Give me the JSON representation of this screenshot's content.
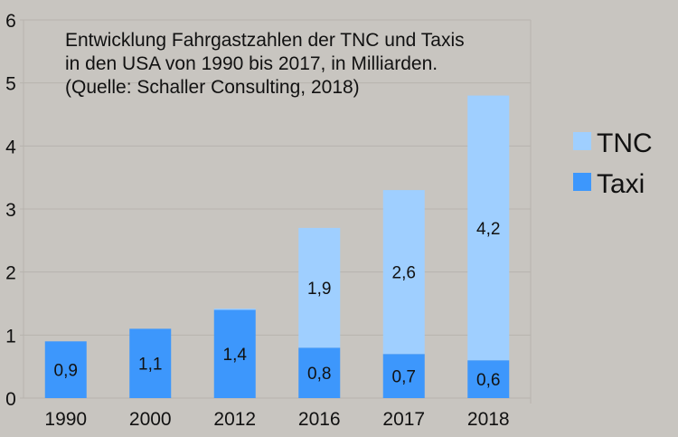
{
  "chart_data": {
    "type": "bar",
    "stacked": true,
    "title_lines": [
      "Entwicklung Fahrgastzahlen der TNC und Taxis",
      "in den USA von 1990 bis 2017, in Milliarden.",
      "(Quelle: Schaller Consulting, 2018)"
    ],
    "xlabel": "",
    "ylabel": "",
    "categories": [
      "1990",
      "2000",
      "2012",
      "2016",
      "2017",
      "2018"
    ],
    "series": [
      {
        "name": "Taxi",
        "color": "#3d97fc",
        "values": [
          0.9,
          1.1,
          1.4,
          0.8,
          0.7,
          0.6
        ],
        "labels": [
          "0,9",
          "1,1",
          "1,4",
          "0,8",
          "0,7",
          "0,6"
        ]
      },
      {
        "name": "TNC",
        "color": "#9fcfff",
        "values": [
          0,
          0,
          0.02,
          1.9,
          2.6,
          4.2
        ],
        "labels": [
          "",
          "",
          "",
          "1,9",
          "2,6",
          "4,2"
        ]
      }
    ],
    "ylim": [
      0,
      6
    ],
    "yticks": [
      "0",
      "1",
      "2",
      "3",
      "4",
      "5",
      "6"
    ],
    "grid": true,
    "legend": {
      "placement": "right",
      "entries": [
        "TNC",
        "Taxi"
      ]
    }
  }
}
